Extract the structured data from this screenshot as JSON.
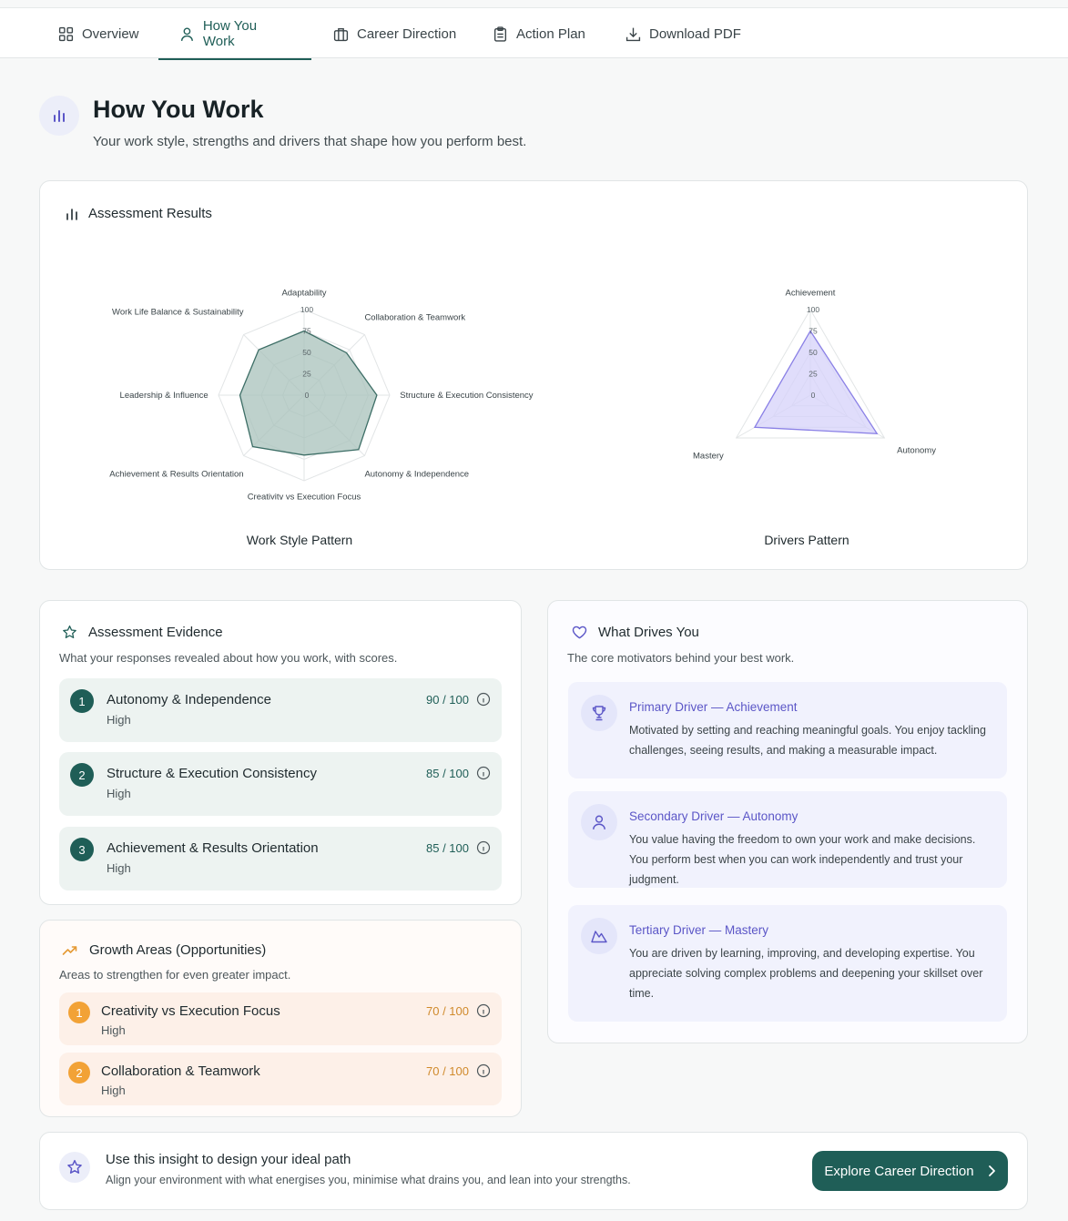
{
  "tabs": [
    {
      "label": "Overview",
      "icon": "grid-icon"
    },
    {
      "label": "How You Work",
      "icon": "user-icon",
      "active": true
    },
    {
      "label": "Career Direction",
      "icon": "briefcase-icon"
    },
    {
      "label": "Action Plan",
      "icon": "clipboard-icon"
    },
    {
      "label": "Download PDF",
      "icon": "download-icon"
    }
  ],
  "header": {
    "title": "How You Work",
    "subtitle": "Your work style, strengths and drivers that shape how you perform best.",
    "icon": "bar-chart-icon"
  },
  "results": {
    "title": "Assessment Results",
    "work_style_caption": "Work Style Pattern",
    "drivers_caption": "Drivers Pattern"
  },
  "chart_data": [
    {
      "type": "radar",
      "title": "Work Style Pattern",
      "categories": [
        "Adaptability",
        "Collaboration & Teamwork",
        "Structure & Execution Consistency",
        "Autonomy & Independence",
        "Creativity vs Execution Focus",
        "Achievement & Results Orientation",
        "Leadership & Influence",
        "Work Life Balance & Sustainability"
      ],
      "values": [
        75,
        70,
        85,
        90,
        70,
        85,
        75,
        75
      ],
      "rlim": [
        0,
        100
      ],
      "ticks": [
        0,
        25,
        50,
        75,
        100
      ],
      "fill_color": "#a8c2bb",
      "stroke_color": "#3d6e66"
    },
    {
      "type": "radar",
      "title": "Drivers Pattern",
      "categories": [
        "Achievement",
        "Autonomy",
        "Mastery"
      ],
      "values": [
        75,
        90,
        75
      ],
      "rlim": [
        0,
        100
      ],
      "ticks": [
        0,
        25,
        50,
        75,
        100
      ],
      "fill_color": "#d6d2fa",
      "stroke_color": "#8a80e6"
    }
  ],
  "evidence": {
    "title": "Assessment Evidence",
    "subtitle": "What your responses revealed about how you work, with scores.",
    "items": [
      {
        "num": "1",
        "name": "Autonomy & Independence",
        "level": "High",
        "score": "90 / 100"
      },
      {
        "num": "2",
        "name": "Structure & Execution Consistency",
        "level": "High",
        "score": "85 / 100"
      },
      {
        "num": "3",
        "name": "Achievement & Results Orientation",
        "level": "High",
        "score": "85 / 100"
      }
    ]
  },
  "growth": {
    "title": "Growth Areas (Opportunities)",
    "subtitle": "Areas to strengthen for even greater impact.",
    "items": [
      {
        "num": "1",
        "name": "Creativity vs Execution Focus",
        "level": "High",
        "score": "70 / 100"
      },
      {
        "num": "2",
        "name": "Collaboration & Teamwork",
        "level": "High",
        "score": "70 / 100"
      }
    ]
  },
  "drivers": {
    "title": "What Drives You",
    "subtitle": "The core motivators behind your best work.",
    "items": [
      {
        "title": "Primary Driver — Achievement",
        "text": "Motivated by setting and reaching meaningful goals. You enjoy tackling challenges, seeing results, and making a measurable impact.",
        "icon": "trophy-icon"
      },
      {
        "title": "Secondary Driver — Autonomy",
        "text": "You value having the freedom to own your work and make decisions. You perform best when you can work independently and trust your judgment.",
        "icon": "person-icon"
      },
      {
        "title": "Tertiary Driver — Mastery",
        "text": "You are driven by learning, improving, and developing expertise. You appreciate solving complex problems and deepening your skillset over time.",
        "icon": "mountain-icon"
      }
    ]
  },
  "cta": {
    "title": "Use this insight to design your ideal path",
    "subtitle": "Align your environment with what energises you, minimise what drains you, and lean into your strengths.",
    "button_label": "Explore Career Direction"
  }
}
